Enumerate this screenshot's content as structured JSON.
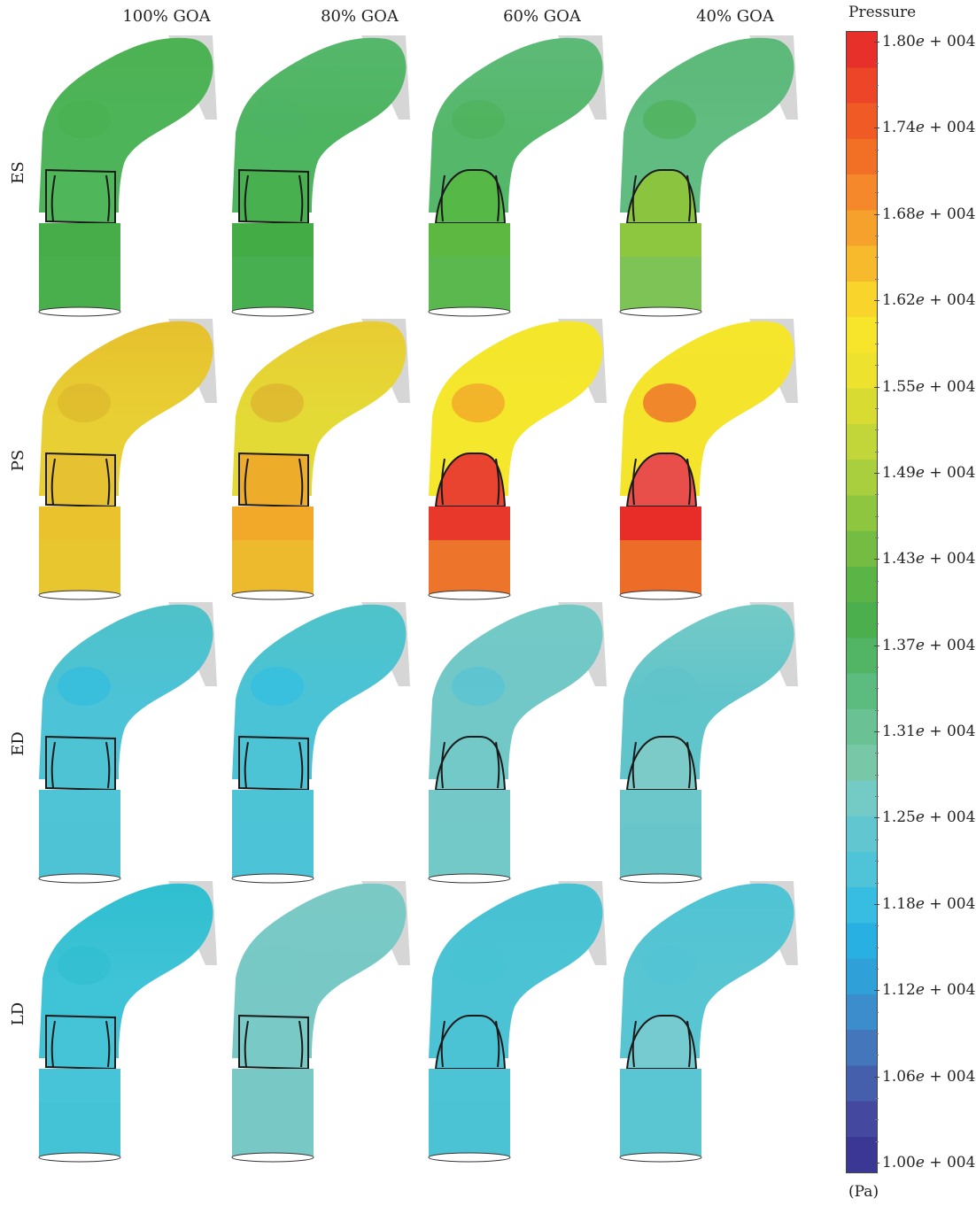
{
  "columns": [
    "100% GOA",
    "80% GOA",
    "60% GOA",
    "40% GOA"
  ],
  "rows": [
    "ES",
    "PS",
    "ED",
    "LD"
  ],
  "colorbar": {
    "title": "Pressure",
    "unit": "(Pa)",
    "ticks": [
      "1.80e + 004",
      "1.74e + 004",
      "1.68e + 004",
      "1.62e + 004",
      "1.55e + 004",
      "1.49e + 004",
      "1.43e + 004",
      "1.37e + 004",
      "1.31e + 004",
      "1.25e + 004",
      "1.18e + 004",
      "1.12e + 004",
      "1.06e + 004",
      "1.00e + 004"
    ],
    "colors": [
      "#e8302a",
      "#ed4528",
      "#f05a24",
      "#f27025",
      "#f4882a",
      "#f7a12d",
      "#f8ba2d",
      "#f9d42b",
      "#f6e52b",
      "#ede22d",
      "#d8dc32",
      "#c2d63a",
      "#a9cf3e",
      "#8fc63f",
      "#74bd42",
      "#5ab446",
      "#4caf4e",
      "#52b566",
      "#5cbb7e",
      "#6ac294",
      "#78c8a8",
      "#74cac4",
      "#62c6d0",
      "#4fc3d8",
      "#38bde2",
      "#28b0e2",
      "#2fa0d8",
      "#3b8dcc",
      "#4476bb",
      "#465fad",
      "#44499f",
      "#3a3795"
    ]
  },
  "panels": [
    {
      "row": "ES",
      "col": "100% GOA",
      "top": "#4cb252",
      "mid": "#4eb45a",
      "valve": "#4fb65a",
      "base": "#47ad48",
      "accent": "#48b04f"
    },
    {
      "row": "ES",
      "col": "80% GOA",
      "top": "#55b76b",
      "mid": "#4db460",
      "valve": "#48b04e",
      "base": "#44ac45",
      "accent": "#4fb567"
    },
    {
      "row": "ES",
      "col": "60% GOA",
      "top": "#5dba78",
      "mid": "#55b76a",
      "valve": "#55b847",
      "base": "#5db841",
      "accent": "#4cb055"
    },
    {
      "row": "ES",
      "col": "40% GOA",
      "top": "#5db978",
      "mid": "#60bc80",
      "valve": "#8bc43e",
      "base": "#8dc63f",
      "accent": "#49ae4f"
    },
    {
      "row": "PS",
      "col": "100% GOA",
      "top": "#e6c02e",
      "mid": "#e8cf33",
      "valve": "#e6c233",
      "base": "#e9c22d",
      "accent": "#d9b22c"
    },
    {
      "row": "PS",
      "col": "80% GOA",
      "top": "#e8cc32",
      "mid": "#e4da36",
      "valve": "#eeac2b",
      "base": "#f2a92a",
      "accent": "#daa62c"
    },
    {
      "row": "PS",
      "col": "60% GOA",
      "top": "#f3e62b",
      "mid": "#f5e72c",
      "valve": "#e84430",
      "base": "#e8382b",
      "accent": "#f08a2a"
    },
    {
      "row": "PS",
      "col": "40% GOA",
      "top": "#f5e62c",
      "mid": "#f4e42c",
      "valve": "#e84e4a",
      "base": "#e82c27",
      "accent": "#ec3a2b"
    },
    {
      "row": "ED",
      "col": "100% GOA",
      "top": "#4fc1c8",
      "mid": "#4cc3d6",
      "valve": "#4ec3d4",
      "base": "#4fc4d6",
      "accent": "#2ab9e2"
    },
    {
      "row": "ED",
      "col": "80% GOA",
      "top": "#4fc3c9",
      "mid": "#4bc3d6",
      "valve": "#4cc4d6",
      "base": "#4dc3d6",
      "accent": "#29bde6"
    },
    {
      "row": "ED",
      "col": "60% GOA",
      "top": "#72c9c5",
      "mid": "#72c8c7",
      "valve": "#72c9c8",
      "base": "#74c9c8",
      "accent": "#4fc3d8"
    },
    {
      "row": "ED",
      "col": "40% GOA",
      "top": "#74cac6",
      "mid": "#60c4cb",
      "valve": "#7dcbc9",
      "base": "#6cc7ca",
      "accent": "#5fc2cb"
    },
    {
      "row": "LD",
      "col": "100% GOA",
      "top": "#2fbfd0",
      "mid": "#3fc3d6",
      "valve": "#45c4d8",
      "base": "#48c4d8",
      "accent": "#2ebdd0"
    },
    {
      "row": "LD",
      "col": "80% GOA",
      "top": "#7ac9c5",
      "mid": "#78c9c6",
      "valve": "#79c9c6",
      "base": "#78c8c6",
      "accent": "#74c8c4"
    },
    {
      "row": "LD",
      "col": "60% GOA",
      "top": "#47c2d2",
      "mid": "#4bc3d4",
      "valve": "#4cc3d5",
      "base": "#4dc4d6",
      "accent": "#45c2d3"
    },
    {
      "row": "LD",
      "col": "40% GOA",
      "top": "#4fc3d5",
      "mid": "#58c5d2",
      "valve": "#76cbd0",
      "base": "#5bc6d3",
      "accent": "#50c3d5"
    }
  ]
}
